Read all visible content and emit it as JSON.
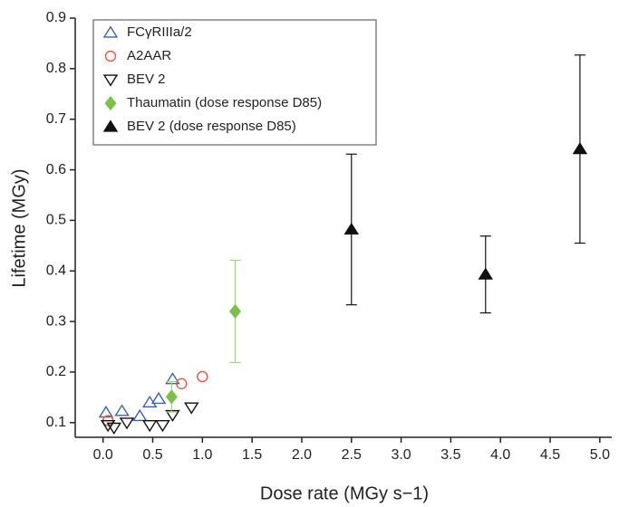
{
  "chart_data": {
    "type": "scatter",
    "x_label": "Dose rate (MGy s−1)",
    "y_label": "Lifetime (MGy)",
    "xlim": [
      -0.28,
      5.12
    ],
    "ylim": [
      0.071,
      0.9
    ],
    "xticks": [
      {
        "value": 0,
        "label": "0.0"
      },
      {
        "value": 0.5,
        "label": "0.5"
      },
      {
        "value": 1,
        "label": "1.0"
      },
      {
        "value": 1.5,
        "label": "1.5"
      },
      {
        "value": 2,
        "label": "2.0"
      },
      {
        "value": 2.5,
        "label": "2.5"
      },
      {
        "value": 3,
        "label": "3.0"
      },
      {
        "value": 3.5,
        "label": "3.5"
      },
      {
        "value": 4,
        "label": "4.0"
      },
      {
        "value": 4.5,
        "label": "4.5"
      },
      {
        "value": 5,
        "label": "5.0"
      }
    ],
    "yticks": [
      0.1,
      0.2,
      0.3,
      0.4,
      0.5,
      0.6,
      0.7,
      0.8,
      0.9
    ],
    "legend": "upper left",
    "series": [
      {
        "name": "FCγRIIIa/2",
        "color": "#3b63ae",
        "marker": "triangle-open",
        "x": [
          0.03,
          0.19,
          0.37,
          0.47,
          0.56,
          0.7
        ],
        "values": [
          0.12,
          0.123,
          0.113,
          0.14,
          0.147,
          0.186
        ]
      },
      {
        "name": "A2AAR",
        "color": "#e4573d",
        "marker": "circle-open",
        "x": [
          0.05,
          0.79,
          1.0
        ],
        "values": [
          0.104,
          0.177,
          0.191
        ]
      },
      {
        "name": "BEV 2",
        "color": "#111111",
        "marker": "triangle-down-open",
        "x": [
          0.05,
          0.11,
          0.24,
          0.47,
          0.6,
          0.7,
          0.89
        ],
        "values": [
          0.095,
          0.09,
          0.1,
          0.095,
          0.095,
          0.115,
          0.13
        ]
      },
      {
        "name": "Thaumatin (dose response D85)",
        "color": "#7cc04b",
        "marker": "diamond",
        "x": [
          0.69,
          1.33
        ],
        "values": [
          0.151,
          0.32
        ],
        "errors": [
          0.03,
          0.101
        ]
      },
      {
        "name": "BEV 2 (dose response D85)",
        "color": "#111111",
        "marker": "triangle",
        "x": [
          2.5,
          3.85,
          4.8
        ],
        "values": [
          0.482,
          0.393,
          0.641
        ],
        "errors": [
          0.149,
          0.076,
          0.186
        ]
      }
    ]
  }
}
